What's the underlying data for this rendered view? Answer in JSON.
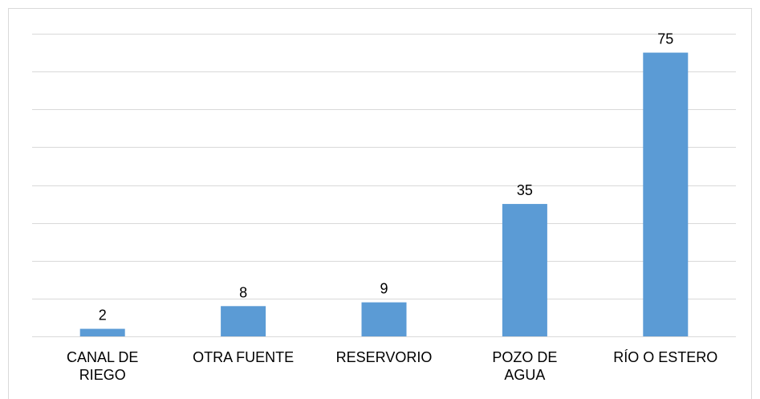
{
  "chart_data": {
    "type": "bar",
    "categories": [
      "CANAL DE\nRIEGO",
      "OTRA FUENTE",
      "RESERVORIO",
      "POZO DE\nAGUA",
      "RÍO O ESTERO"
    ],
    "values": [
      2,
      8,
      9,
      35,
      75
    ],
    "color": "#5b9bd5",
    "ylim": [
      0,
      80
    ],
    "yticks": [
      0,
      10,
      20,
      30,
      40,
      50,
      60,
      70,
      80
    ],
    "grid": true
  }
}
